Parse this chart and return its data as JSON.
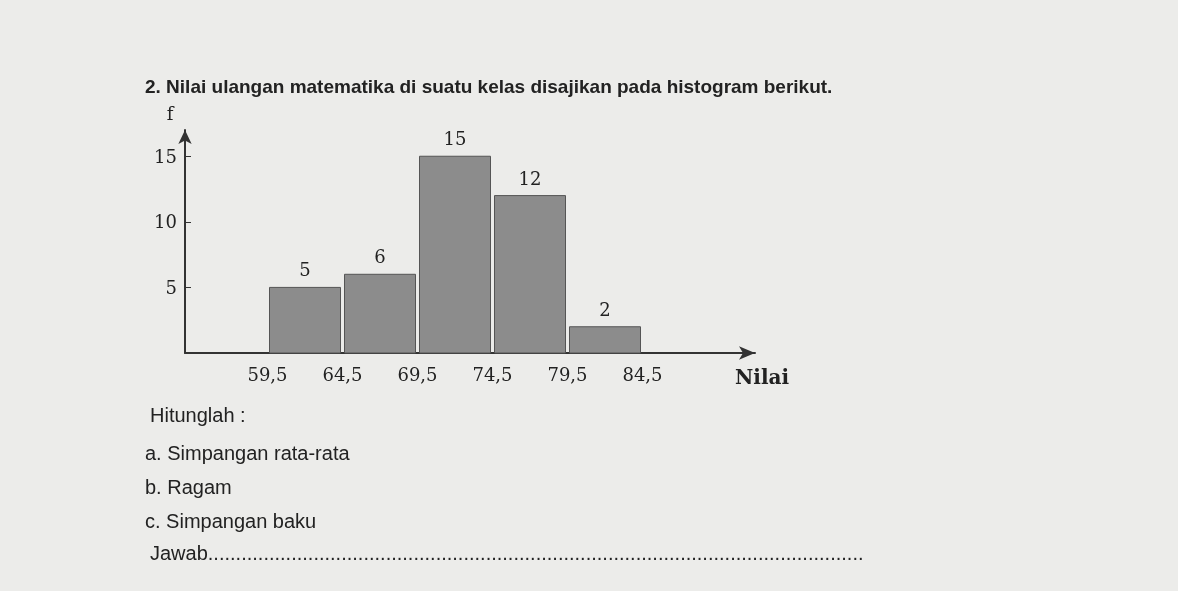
{
  "chart_data": {
    "type": "histogram",
    "title": "2. Nilai ulangan matematika di suatu kelas disajikan pada histogram berikut.",
    "xlabel": "Nilai",
    "ylabel": "f",
    "bins": [
      59.5,
      64.5,
      69.5,
      74.5,
      79.5,
      84.5
    ],
    "values": [
      5,
      6,
      15,
      12,
      2
    ],
    "color": "#8c8c8c",
    "data_labels": true,
    "xlim": [
      54,
      92
    ],
    "xticks": [
      {
        "value": 59.5,
        "label": "59,5"
      },
      {
        "value": 64.5,
        "label": "64,5"
      },
      {
        "value": 69.5,
        "label": "69,5"
      },
      {
        "value": 74.5,
        "label": "74,5"
      },
      {
        "value": 79.5,
        "label": "79,5"
      },
      {
        "value": 84.5,
        "label": "84,5"
      }
    ],
    "ylim": [
      0,
      17
    ],
    "yticks": [
      5,
      10,
      15
    ],
    "grid": false,
    "annotations": [
      "Hitunglah :",
      "a. Simpangan rata-rata",
      "b. Ragam",
      "c. Simpangan baku",
      "Jawab......................................................................................................................"
    ]
  }
}
